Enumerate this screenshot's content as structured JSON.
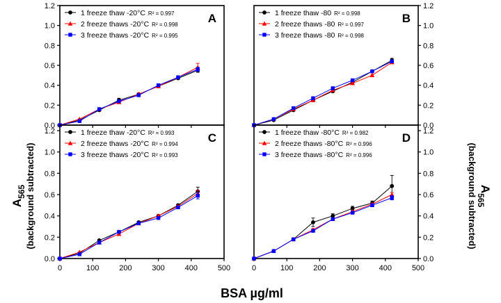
{
  "figure": {
    "xlabel": "BSA µg/ml",
    "ylabel_main": "A",
    "ylabel_sub": "565",
    "ylabel_note": "(background subtracted)"
  },
  "chart_data": [
    {
      "type": "line",
      "panel": "A",
      "xlim": [
        0,
        500
      ],
      "ylim": [
        0,
        1.2
      ],
      "xticks": [
        0,
        100,
        200,
        300,
        400,
        500
      ],
      "yticks": [
        0.0,
        0.2,
        0.4,
        0.6,
        0.8,
        1.0,
        1.2
      ],
      "ytick_labels": [
        "0.0",
        "0.2",
        "0.4",
        "0.6",
        "0.8",
        "1.0",
        "1.2"
      ],
      "x": [
        0,
        60,
        120,
        180,
        240,
        300,
        360,
        420
      ],
      "legend_position": "top-left",
      "series": [
        {
          "name": "1 freeze thaw   -20°C",
          "r2": "R² = 0.997",
          "color": "#000000",
          "marker": "circle",
          "values": [
            0.0,
            0.05,
            0.15,
            0.25,
            0.31,
            0.39,
            0.47,
            0.55
          ],
          "errors": [
            0,
            0,
            0.01,
            0.02,
            0.01,
            0.01,
            0.01,
            0.02
          ]
        },
        {
          "name": "2 freeze thaws -20°C",
          "r2": "R² = 0.998",
          "color": "#ff0000",
          "marker": "triangle",
          "values": [
            0.0,
            0.06,
            0.16,
            0.23,
            0.31,
            0.39,
            0.48,
            0.58
          ],
          "errors": [
            0,
            0,
            0.01,
            0.01,
            0.01,
            0.01,
            0.01,
            0.04
          ]
        },
        {
          "name": "3 freeze thaws -20°C",
          "r2": "R² = 0.995",
          "color": "#0000ff",
          "marker": "square",
          "values": [
            0.0,
            0.04,
            0.16,
            0.24,
            0.3,
            0.4,
            0.48,
            0.56
          ],
          "errors": [
            0,
            0,
            0.01,
            0.01,
            0.01,
            0.01,
            0.01,
            0.02
          ]
        }
      ]
    },
    {
      "type": "line",
      "panel": "B",
      "xlim": [
        0,
        500
      ],
      "ylim": [
        0,
        1.2
      ],
      "xticks": [
        0,
        100,
        200,
        300,
        400,
        500
      ],
      "yticks": [
        0.0,
        0.2,
        0.4,
        0.6,
        0.8,
        1.0,
        1.2
      ],
      "ytick_labels": [
        "0.0",
        "0.2",
        "0.4",
        "0.6",
        "0.8",
        "1.0",
        "1.2"
      ],
      "x": [
        0,
        60,
        120,
        180,
        240,
        300,
        360,
        420
      ],
      "legend_position": "top-left",
      "series": [
        {
          "name": "1 freeze thaw    -80",
          "r2": "R² = 0.998",
          "color": "#000000",
          "marker": "circle",
          "values": [
            0.0,
            0.05,
            0.15,
            0.25,
            0.34,
            0.43,
            0.54,
            0.65
          ],
          "errors": [
            0,
            0,
            0.01,
            0.01,
            0.01,
            0.01,
            0.01,
            0.02
          ]
        },
        {
          "name": "2 freeze thaws -80",
          "r2": "R² = 0.997",
          "color": "#ff0000",
          "marker": "triangle",
          "values": [
            0.0,
            0.06,
            0.16,
            0.25,
            0.35,
            0.42,
            0.5,
            0.63
          ],
          "errors": [
            0,
            0,
            0.01,
            0.01,
            0.01,
            0.01,
            0.01,
            0.01
          ]
        },
        {
          "name": "3 freeze thaws -80",
          "r2": "R² = 0.998",
          "color": "#0000ff",
          "marker": "square",
          "values": [
            0.0,
            0.06,
            0.17,
            0.27,
            0.37,
            0.45,
            0.54,
            0.64
          ],
          "errors": [
            0,
            0,
            0.01,
            0.01,
            0.01,
            0.01,
            0.01,
            0.01
          ]
        }
      ]
    },
    {
      "type": "line",
      "panel": "C",
      "xlim": [
        0,
        500
      ],
      "ylim": [
        0,
        1.2
      ],
      "xticks": [
        0,
        100,
        200,
        300,
        400,
        500
      ],
      "yticks": [
        0.0,
        0.2,
        0.4,
        0.6,
        0.8,
        1.0,
        1.2
      ],
      "ytick_labels": [
        "0.0",
        "0.2",
        "0.4",
        "0.6",
        "0.8",
        "1.0",
        "1.2"
      ],
      "x": [
        0,
        60,
        120,
        180,
        240,
        300,
        360,
        420
      ],
      "legend_position": "top-left",
      "series": [
        {
          "name": "1 freeze thaw   -20°C",
          "r2": "R² = 0.993",
          "color": "#000000",
          "marker": "circle",
          "values": [
            0.0,
            0.05,
            0.17,
            0.25,
            0.34,
            0.4,
            0.5,
            0.63
          ],
          "errors": [
            0,
            0,
            0.01,
            0.01,
            0.01,
            0.01,
            0.01,
            0.04
          ]
        },
        {
          "name": "2 freeze thaws -20°C",
          "r2": "R² = 0.994",
          "color": "#ff0000",
          "marker": "triangle",
          "values": [
            0.0,
            0.06,
            0.15,
            0.23,
            0.33,
            0.4,
            0.49,
            0.61
          ],
          "errors": [
            0,
            0,
            0.01,
            0.01,
            0.01,
            0.01,
            0.01,
            0.03
          ]
        },
        {
          "name": "3 freeze thaws -20°C",
          "r2": "R² = 0.993",
          "color": "#0000ff",
          "marker": "square",
          "values": [
            0.0,
            0.04,
            0.15,
            0.25,
            0.33,
            0.38,
            0.48,
            0.59
          ],
          "errors": [
            0,
            0,
            0.01,
            0.01,
            0.01,
            0.01,
            0.01,
            0.03
          ]
        }
      ]
    },
    {
      "type": "line",
      "panel": "D",
      "xlim": [
        0,
        500
      ],
      "ylim": [
        0,
        1.2
      ],
      "xticks": [
        0,
        100,
        200,
        300,
        400,
        500
      ],
      "yticks": [
        0.0,
        0.2,
        0.4,
        0.6,
        0.8,
        1.0,
        1.2
      ],
      "ytick_labels": [
        "0.0",
        "0.2",
        "0.4",
        "0.6",
        "0.8",
        "1.0",
        "1.2"
      ],
      "x": [
        0,
        60,
        120,
        180,
        240,
        300,
        360,
        420
      ],
      "legend_position": "top-left",
      "series": [
        {
          "name": "1 freeze thaw   -80°C",
          "r2": "R² = 0.982",
          "color": "#000000",
          "marker": "circle",
          "values": [
            0.0,
            0.07,
            0.18,
            0.34,
            0.4,
            0.47,
            0.52,
            0.68
          ],
          "errors": [
            0,
            0,
            0.01,
            0.04,
            0.02,
            0.02,
            0.02,
            0.1
          ]
        },
        {
          "name": "2 freeze thaws -80°C",
          "r2": "R² = 0.996",
          "color": "#ff0000",
          "marker": "triangle",
          "values": [
            0.0,
            0.07,
            0.18,
            0.27,
            0.37,
            0.44,
            0.51,
            0.6
          ],
          "errors": [
            0,
            0,
            0.01,
            0.01,
            0.01,
            0.01,
            0.01,
            0.02
          ]
        },
        {
          "name": "3 freeze thaws -80°C",
          "r2": "R² = 0.996",
          "color": "#0000ff",
          "marker": "square",
          "values": [
            0.0,
            0.07,
            0.18,
            0.26,
            0.37,
            0.43,
            0.5,
            0.57
          ],
          "errors": [
            0,
            0,
            0.01,
            0.01,
            0.01,
            0.01,
            0.01,
            0.02
          ]
        }
      ]
    }
  ]
}
